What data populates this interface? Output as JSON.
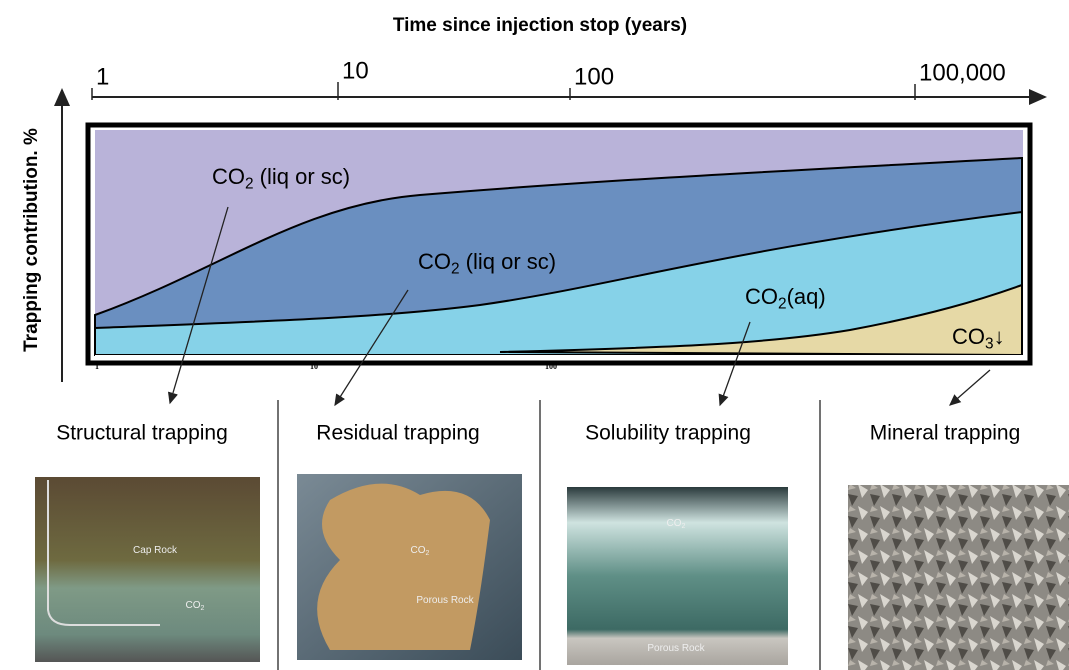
{
  "header": {
    "title": "Time since injection stop (years)"
  },
  "time_axis": {
    "ticks": [
      "1",
      "10",
      "100",
      "100,000"
    ]
  },
  "y_axis": {
    "label": "Trapping contribution. %"
  },
  "inner_axis": {
    "ticks": [
      "1",
      "10",
      "100"
    ]
  },
  "regions": [
    {
      "base": "CO",
      "sub": "2",
      "rest": " (liq or sc)"
    },
    {
      "base": "CO",
      "sub": "2",
      "rest": " (liq or sc)"
    },
    {
      "base": "CO",
      "sub": "2",
      "rest": "(aq)"
    },
    {
      "base": "CO",
      "sub": "3",
      "rest": "↓"
    }
  ],
  "panels": [
    {
      "title": "Structural trapping",
      "image_labels": [
        {
          "base": "Cap Rock"
        },
        {
          "base": "CO",
          "sub": "2"
        }
      ]
    },
    {
      "title": "Residual trapping",
      "image_labels": [
        {
          "base": "CO",
          "sub": "2"
        },
        {
          "base": "Porous Rock"
        }
      ]
    },
    {
      "title": "Solubility trapping",
      "image_labels": [
        {
          "base": "CO",
          "sub": "2"
        },
        {
          "base": "Porous Rock"
        }
      ]
    },
    {
      "title": "Mineral trapping",
      "image_labels": []
    }
  ]
}
